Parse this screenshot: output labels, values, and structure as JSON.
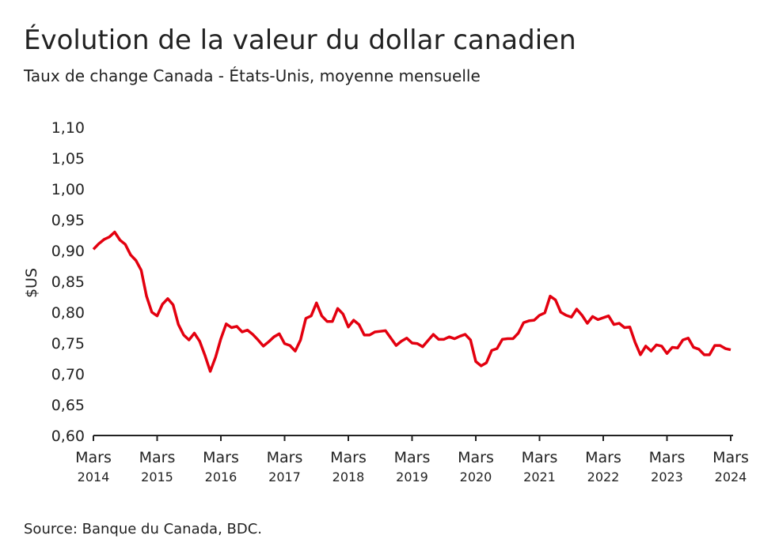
{
  "chart_data": {
    "type": "line",
    "title": "Évolution de la valeur du dollar canadien",
    "subtitle": "Taux de change Canada - États-Unis, moyenne mensuelle",
    "y_label": "$US",
    "source": "Source: Banque du Canada, BDC.",
    "color": "#e3000f",
    "categories": [
      "Mars 2014",
      null,
      null,
      null,
      null,
      null,
      null,
      null,
      null,
      null,
      null,
      null,
      "Mars 2015",
      null,
      null,
      null,
      null,
      null,
      null,
      null,
      null,
      null,
      null,
      null,
      "Mars 2016",
      null,
      null,
      null,
      null,
      null,
      null,
      null,
      null,
      null,
      null,
      null,
      "Mars 2017",
      null,
      null,
      null,
      null,
      null,
      null,
      null,
      null,
      null,
      null,
      null,
      "Mars 2018",
      null,
      null,
      null,
      null,
      null,
      null,
      null,
      null,
      null,
      null,
      null,
      "Mars 2019",
      null,
      null,
      null,
      null,
      null,
      null,
      null,
      null,
      null,
      null,
      null,
      "Mars 2020",
      null,
      null,
      null,
      null,
      null,
      null,
      null,
      null,
      null,
      null,
      null,
      "Mars 2021",
      null,
      null,
      null,
      null,
      null,
      null,
      null,
      null,
      null,
      null,
      null,
      "Mars 2022",
      null,
      null,
      null,
      null,
      null,
      null,
      null,
      null,
      null,
      null,
      null,
      "Mars 2023",
      null,
      null,
      null,
      null,
      null,
      null,
      null,
      null,
      null,
      null,
      null,
      "Mars 2024"
    ],
    "values": [
      0.902,
      0.911,
      0.918,
      0.922,
      0.93,
      0.917,
      0.91,
      0.893,
      0.884,
      0.868,
      0.826,
      0.8,
      0.794,
      0.813,
      0.822,
      0.812,
      0.78,
      0.763,
      0.755,
      0.766,
      0.753,
      0.73,
      0.704,
      0.727,
      0.757,
      0.781,
      0.775,
      0.777,
      0.768,
      0.771,
      0.764,
      0.755,
      0.745,
      0.752,
      0.76,
      0.765,
      0.749,
      0.746,
      0.737,
      0.755,
      0.79,
      0.794,
      0.815,
      0.794,
      0.785,
      0.785,
      0.806,
      0.797,
      0.776,
      0.787,
      0.78,
      0.763,
      0.763,
      0.768,
      0.769,
      0.77,
      0.758,
      0.746,
      0.753,
      0.758,
      0.75,
      0.749,
      0.744,
      0.754,
      0.764,
      0.756,
      0.756,
      0.76,
      0.757,
      0.761,
      0.764,
      0.755,
      0.72,
      0.713,
      0.718,
      0.738,
      0.741,
      0.756,
      0.757,
      0.757,
      0.766,
      0.783,
      0.786,
      0.787,
      0.795,
      0.799,
      0.826,
      0.82,
      0.8,
      0.795,
      0.792,
      0.805,
      0.795,
      0.782,
      0.793,
      0.788,
      0.791,
      0.794,
      0.78,
      0.782,
      0.775,
      0.776,
      0.751,
      0.731,
      0.745,
      0.737,
      0.747,
      0.745,
      0.733,
      0.743,
      0.742,
      0.755,
      0.758,
      0.743,
      0.74,
      0.731,
      0.731,
      0.746,
      0.746,
      0.741,
      0.739
    ],
    "ylim": [
      0.6,
      1.1
    ],
    "yticks": [
      {
        "value": 0.6,
        "label": "0,60"
      },
      {
        "value": 0.65,
        "label": "0,65"
      },
      {
        "value": 0.7,
        "label": "0,70"
      },
      {
        "value": 0.75,
        "label": "0,75"
      },
      {
        "value": 0.8,
        "label": "0,80"
      },
      {
        "value": 0.85,
        "label": "0,85"
      },
      {
        "value": 0.9,
        "label": "0,90"
      },
      {
        "value": 0.95,
        "label": "0,95"
      },
      {
        "value": 1.0,
        "label": "1,00"
      },
      {
        "value": 1.05,
        "label": "1,05"
      },
      {
        "value": 1.1,
        "label": "1,10"
      }
    ],
    "grid": false
  }
}
